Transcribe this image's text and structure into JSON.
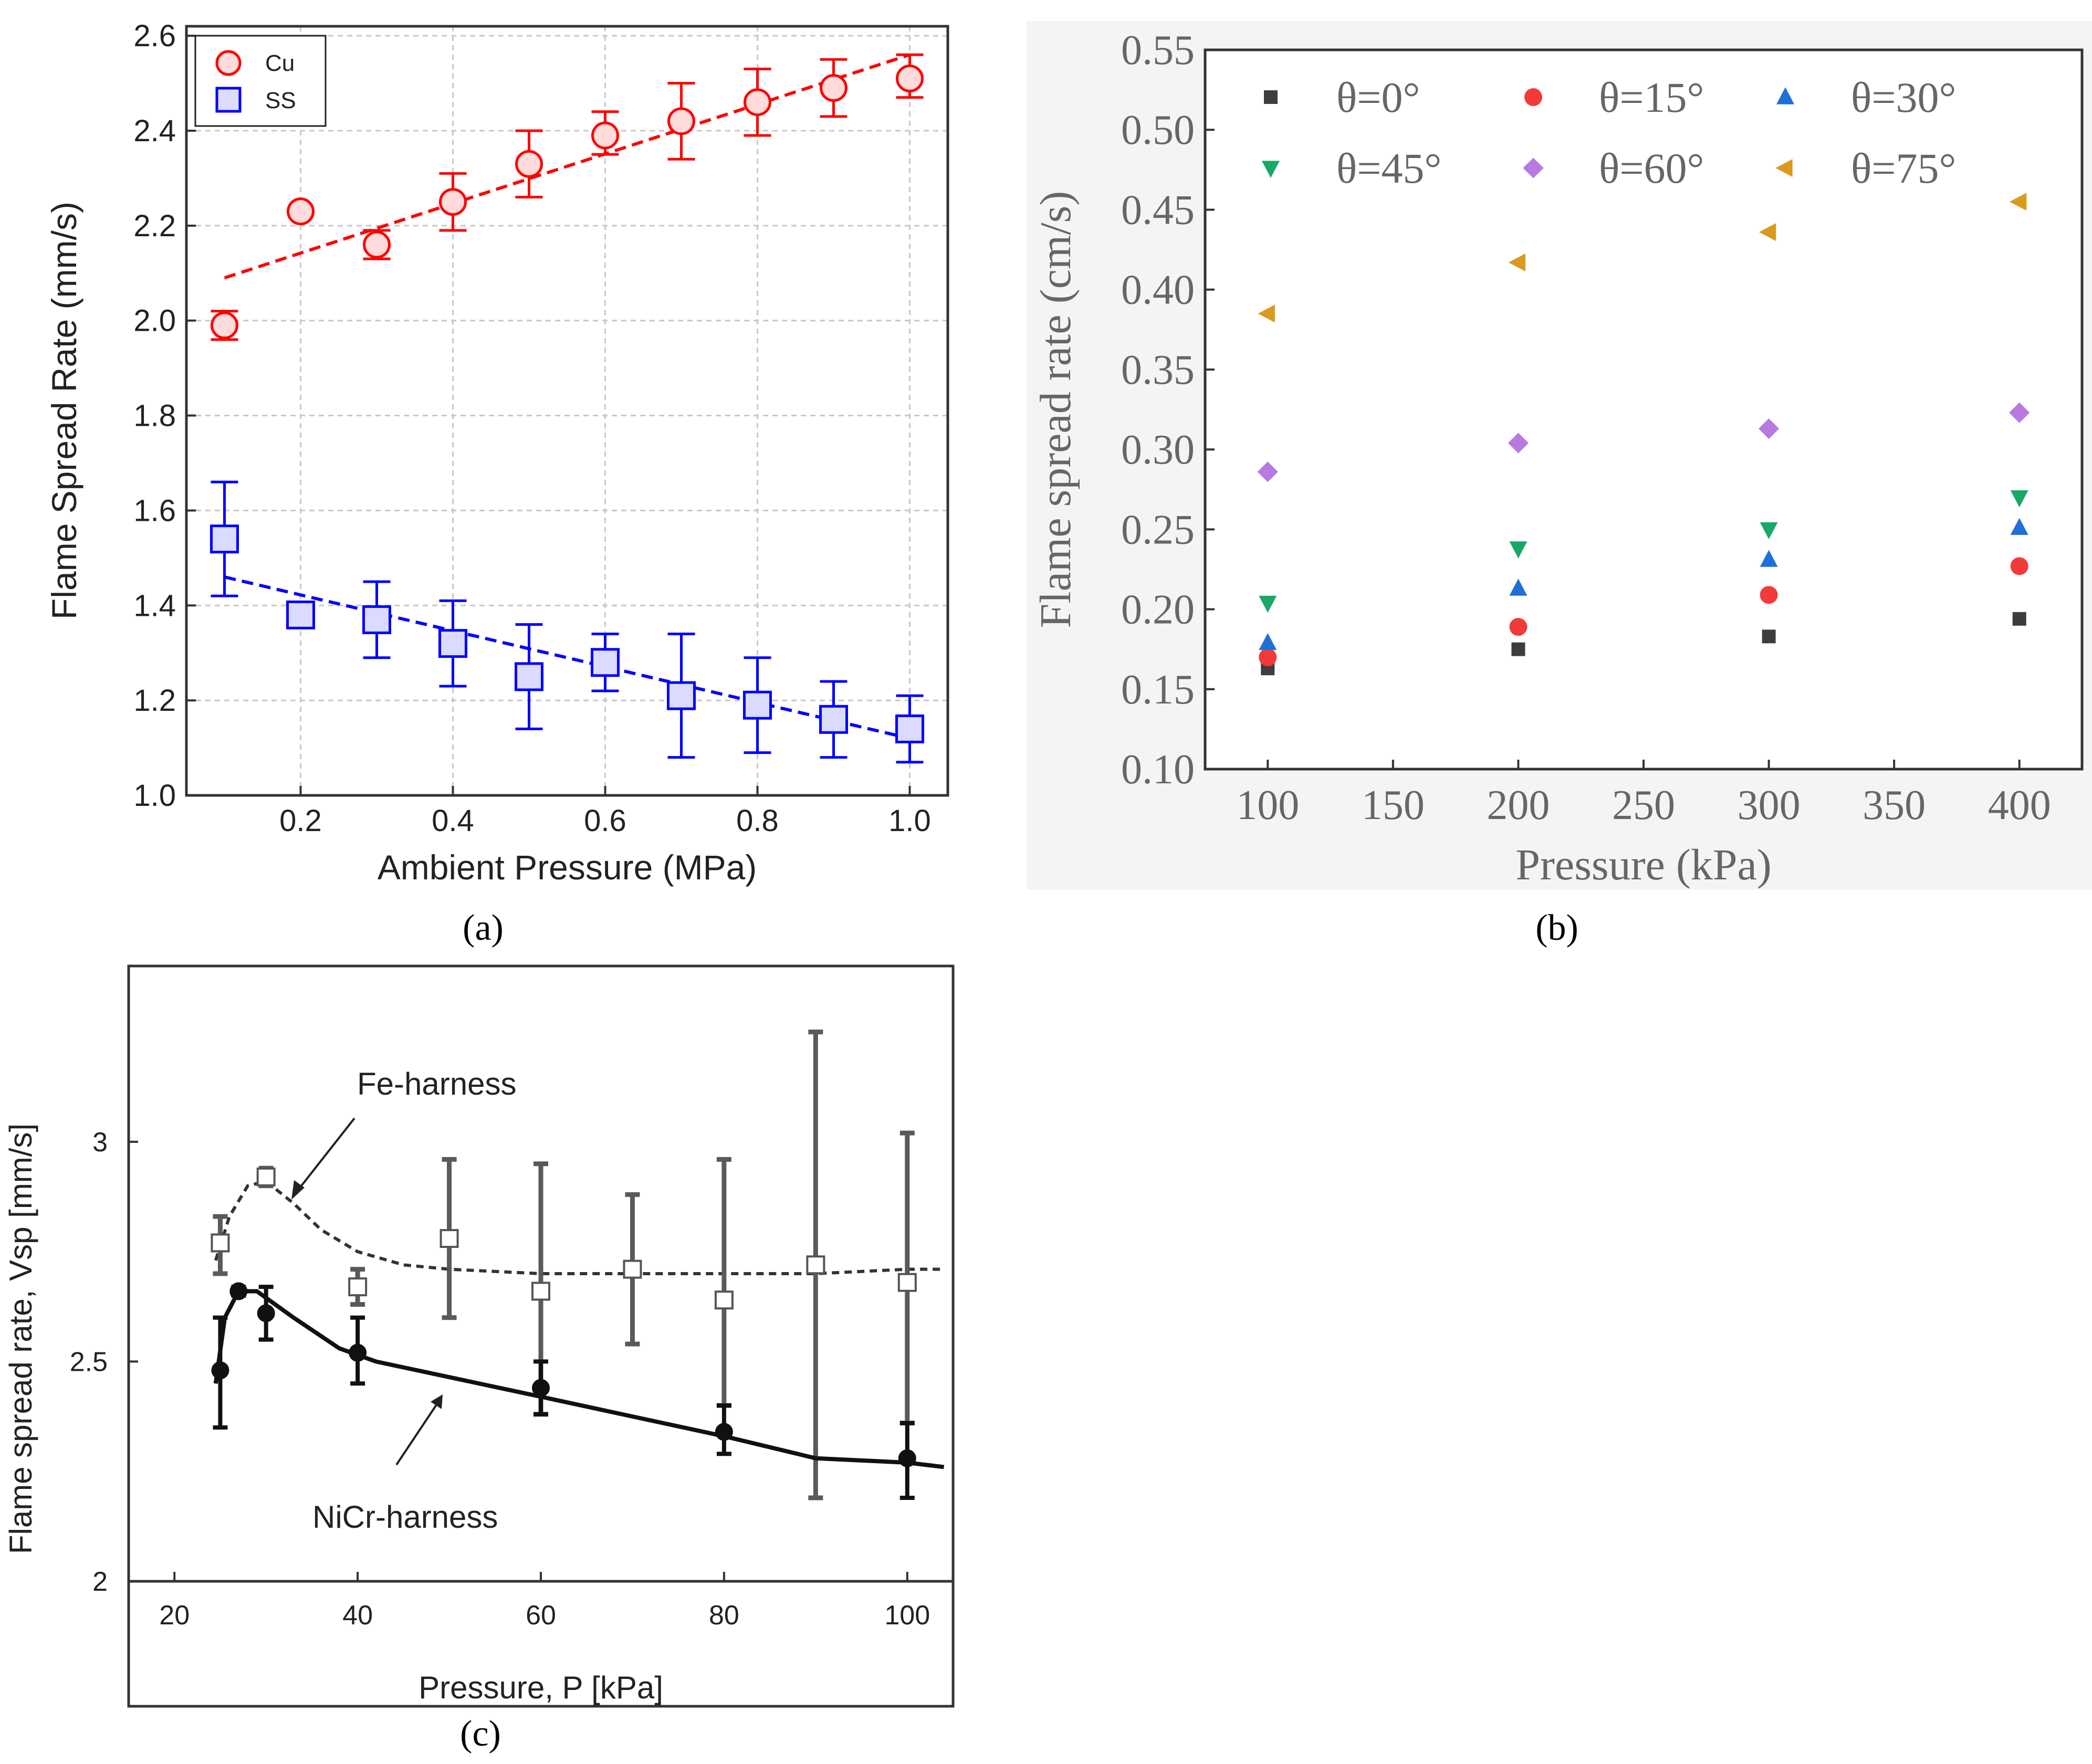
{
  "chart_data": [
    {
      "panel_label": "(a)",
      "type": "scatter",
      "xlabel": "Ambient Pressure (MPa)",
      "ylabel": "Flame Spread Rate (mm/s)",
      "xlim": [
        0.05,
        1.05
      ],
      "ylim": [
        1.0,
        2.62
      ],
      "xticks": [
        "0.2",
        "0.4",
        "0.6",
        "0.8",
        "1.0"
      ],
      "yticks": [
        "1.0",
        "1.2",
        "1.4",
        "1.6",
        "1.8",
        "2.0",
        "2.2",
        "2.4",
        "2.6"
      ],
      "grid": true,
      "legend_position": "top-left",
      "series": [
        {
          "name": "Cu",
          "color": "#ff0000",
          "marker": "circle",
          "x": [
            0.1,
            0.2,
            0.3,
            0.4,
            0.5,
            0.6,
            0.7,
            0.8,
            0.9,
            1.0
          ],
          "y": [
            1.99,
            2.23,
            2.16,
            2.25,
            2.33,
            2.39,
            2.42,
            2.46,
            2.49,
            2.51
          ],
          "err_low": [
            1.96,
            null,
            2.13,
            2.19,
            2.26,
            2.35,
            2.34,
            2.39,
            2.43,
            2.47
          ],
          "err_high": [
            2.02,
            null,
            2.19,
            2.31,
            2.4,
            2.44,
            2.5,
            2.53,
            2.55,
            2.56
          ],
          "fit": [
            [
              0.1,
              2.09
            ],
            [
              1.0,
              2.56
            ]
          ]
        },
        {
          "name": "SS",
          "color": "#0000ff",
          "marker": "square",
          "x": [
            0.1,
            0.2,
            0.3,
            0.4,
            0.5,
            0.6,
            0.7,
            0.8,
            0.9,
            1.0
          ],
          "y": [
            1.54,
            1.38,
            1.37,
            1.32,
            1.25,
            1.28,
            1.21,
            1.19,
            1.16,
            1.14
          ],
          "err_low": [
            1.42,
            null,
            1.29,
            1.23,
            1.14,
            1.22,
            1.08,
            1.09,
            1.08,
            1.07
          ],
          "err_high": [
            1.66,
            null,
            1.45,
            1.41,
            1.36,
            1.34,
            1.34,
            1.29,
            1.24,
            1.21
          ],
          "fit": [
            [
              0.1,
              1.46
            ],
            [
              1.0,
              1.12
            ]
          ]
        }
      ]
    },
    {
      "panel_label": "(b)",
      "type": "scatter",
      "xlabel": "Pressure (kPa)",
      "ylabel": "Flame spread rate (cm/s)",
      "xlim": [
        75,
        425
      ],
      "ylim": [
        0.1,
        0.55
      ],
      "xticks": [
        "100",
        "150",
        "200",
        "250",
        "300",
        "350",
        "400"
      ],
      "yticks": [
        "0.10",
        "0.15",
        "0.20",
        "0.25",
        "0.30",
        "0.35",
        "0.40",
        "0.45",
        "0.50",
        "0.55"
      ],
      "grid": false,
      "legend_position": "top",
      "x": [
        100,
        200,
        300,
        400
      ],
      "series": [
        {
          "name": "θ=0°",
          "color": "#3d3d3d",
          "marker": "square",
          "y": [
            0.163,
            0.175,
            0.183,
            0.194
          ]
        },
        {
          "name": "θ=15°",
          "color": "#f23a3a",
          "marker": "circle",
          "y": [
            0.17,
            0.189,
            0.209,
            0.227
          ]
        },
        {
          "name": "θ=30°",
          "color": "#1f6fd8",
          "marker": "triangle-up",
          "y": [
            0.179,
            0.213,
            0.231,
            0.251
          ]
        },
        {
          "name": "θ=45°",
          "color": "#19a866",
          "marker": "triangle-down",
          "y": [
            0.204,
            0.238,
            0.25,
            0.27
          ]
        },
        {
          "name": "θ=60°",
          "color": "#b77ae0",
          "marker": "diamond",
          "y": [
            0.286,
            0.304,
            0.313,
            0.323
          ]
        },
        {
          "name": "θ=75°",
          "color": "#d99a1e",
          "marker": "triangle-left",
          "y": [
            0.385,
            0.417,
            0.436,
            0.455
          ]
        }
      ]
    },
    {
      "panel_label": "(c)",
      "type": "line",
      "xlabel": "Pressure, P [kPa]",
      "ylabel": "Flame spread rate, Vsp [mm/s]",
      "xlim": [
        15,
        105
      ],
      "ylim": [
        2.0,
        3.4
      ],
      "xticks": [
        "20",
        "40",
        "60",
        "80",
        "100"
      ],
      "yticks": [
        "2",
        "2.5",
        "3"
      ],
      "grid": false,
      "annotations": [
        "Fe-harness",
        "NiCr-harness"
      ],
      "series": [
        {
          "name": "Fe-harness",
          "color": "#555555",
          "marker": "open-square",
          "line": "dashed",
          "x": [
            25,
            30,
            40,
            50,
            60,
            70,
            80,
            90,
            100
          ],
          "y": [
            2.77,
            2.92,
            2.67,
            2.78,
            2.66,
            2.71,
            2.64,
            2.72,
            2.68
          ],
          "err_low": [
            2.7,
            2.9,
            2.63,
            2.6,
            2.38,
            2.54,
            2.4,
            2.19,
            2.36
          ],
          "err_high": [
            2.83,
            2.94,
            2.71,
            2.96,
            2.95,
            2.88,
            2.96,
            3.25,
            3.02
          ],
          "curve": [
            [
              24.5,
              2.73
            ],
            [
              26,
              2.83
            ],
            [
              28,
              2.9
            ],
            [
              30,
              2.91
            ],
            [
              33,
              2.86
            ],
            [
              36,
              2.8
            ],
            [
              40,
              2.75
            ],
            [
              45,
              2.72
            ],
            [
              50,
              2.71
            ],
            [
              60,
              2.7
            ],
            [
              70,
              2.7
            ],
            [
              80,
              2.7
            ],
            [
              90,
              2.7
            ],
            [
              100,
              2.71
            ],
            [
              104,
              2.71
            ]
          ]
        },
        {
          "name": "NiCr-harness",
          "color": "#111111",
          "marker": "filled-circle",
          "line": "solid",
          "x": [
            25,
            27,
            30,
            40,
            60,
            80,
            100
          ],
          "y": [
            2.48,
            2.66,
            2.61,
            2.52,
            2.44,
            2.34,
            2.28
          ],
          "err_low": [
            2.35,
            2.65,
            2.55,
            2.45,
            2.38,
            2.29,
            2.19
          ],
          "err_high": [
            2.6,
            2.67,
            2.67,
            2.6,
            2.5,
            2.4,
            2.36
          ],
          "curve": [
            [
              24.5,
              2.45
            ],
            [
              25.5,
              2.6
            ],
            [
              27,
              2.66
            ],
            [
              29,
              2.66
            ],
            [
              33,
              2.6
            ],
            [
              38,
              2.53
            ],
            [
              42,
              2.5
            ],
            [
              60,
              2.42
            ],
            [
              80,
              2.33
            ],
            [
              90,
              2.28
            ],
            [
              100,
              2.27
            ],
            [
              104,
              2.26
            ]
          ]
        }
      ]
    }
  ]
}
